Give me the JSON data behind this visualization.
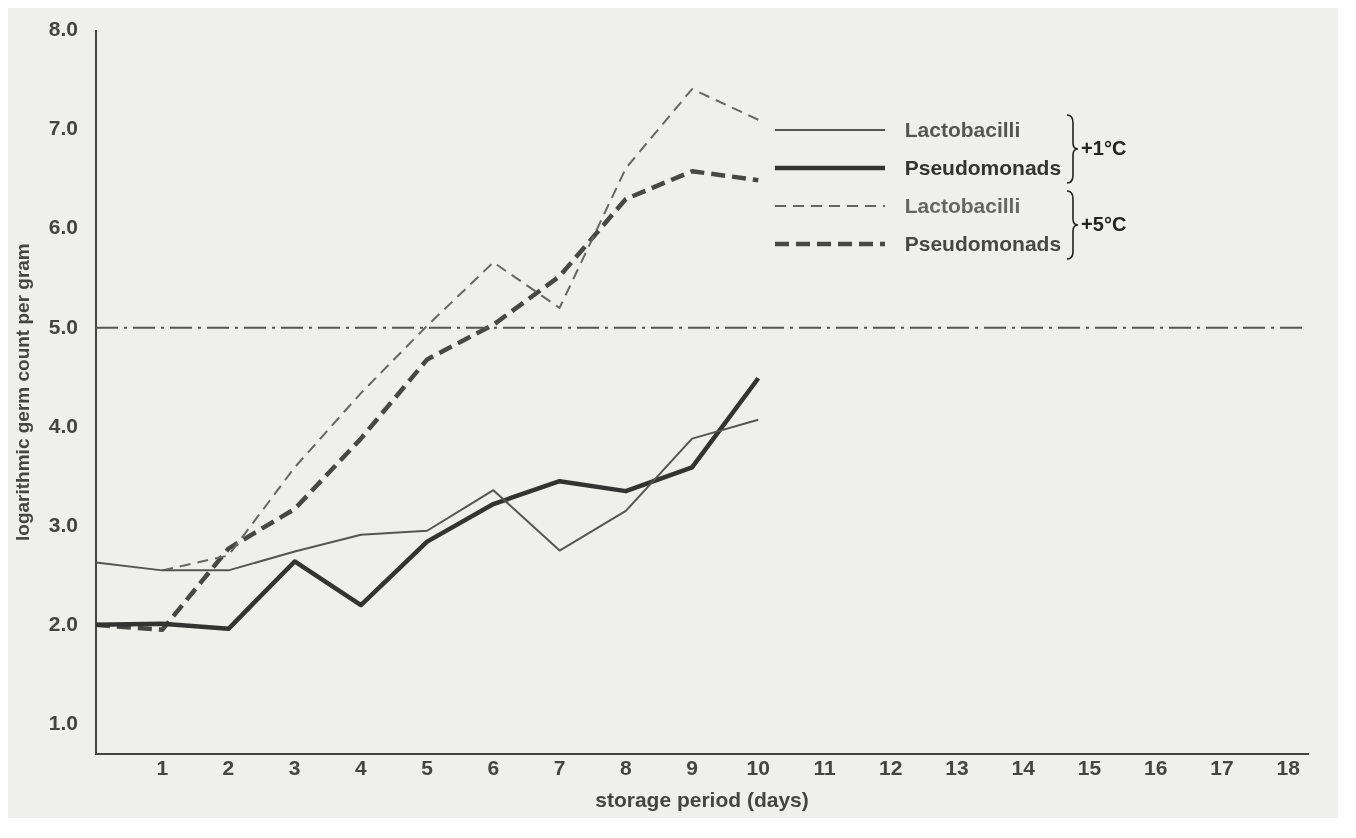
{
  "chart_data": {
    "type": "line",
    "xlabel": "storage period (days)",
    "ylabel": "logarithmic germ count per gram",
    "x": [
      0,
      1,
      2,
      3,
      4,
      5,
      6,
      7,
      8,
      9,
      10
    ],
    "xlim": [
      0,
      18.3
    ],
    "xticks": [
      1,
      2,
      3,
      4,
      5,
      6,
      7,
      8,
      9,
      10,
      11,
      12,
      13,
      14,
      15,
      16,
      17,
      18
    ],
    "ylim": [
      0.7,
      8.0
    ],
    "yticks": [
      {
        "value": 1,
        "label": "1.0"
      },
      {
        "value": 2,
        "label": "2.0"
      },
      {
        "value": 3,
        "label": "3.0"
      },
      {
        "value": 4,
        "label": "4.0"
      },
      {
        "value": 5,
        "label": "5.0"
      },
      {
        "value": 6,
        "label": "6.0"
      },
      {
        "value": 7,
        "label": "7.0"
      },
      {
        "value": 8,
        "label": "8.0"
      }
    ],
    "grid": false,
    "legend": "top right",
    "marker": "none",
    "series": [
      {
        "name": "Lactobacilli",
        "color": "#555555",
        "line_style": "solid",
        "values": [
          2.63,
          2.55,
          2.55,
          2.74,
          2.91,
          2.95,
          3.36,
          2.75,
          3.15,
          3.88,
          4.07
        ]
      },
      {
        "name": "Pseudomonads",
        "color": "#333333",
        "line_style": "solid",
        "values": [
          2.0,
          2.01,
          1.96,
          2.64,
          2.2,
          2.84,
          3.22,
          3.45,
          3.35,
          3.59,
          4.49
        ]
      },
      {
        "name": "Lactobacilli",
        "color": "#666666",
        "line_style": "dashed",
        "values": [
          null,
          2.55,
          2.7,
          3.59,
          4.34,
          5.02,
          5.66,
          5.2,
          6.61,
          7.41,
          7.1
        ]
      },
      {
        "name": "Pseudomonads",
        "color": "#474747",
        "line_style": "dashed",
        "values": [
          2.0,
          1.95,
          2.77,
          3.17,
          3.88,
          4.68,
          5.03,
          5.52,
          6.3,
          6.58,
          6.49
        ]
      }
    ],
    "ref_lines": [
      {
        "axis": "y",
        "value": 5,
        "color": "#555555",
        "line_style": "dashdot"
      }
    ],
    "annotations": [
      "+1°C",
      "+5°C"
    ]
  }
}
